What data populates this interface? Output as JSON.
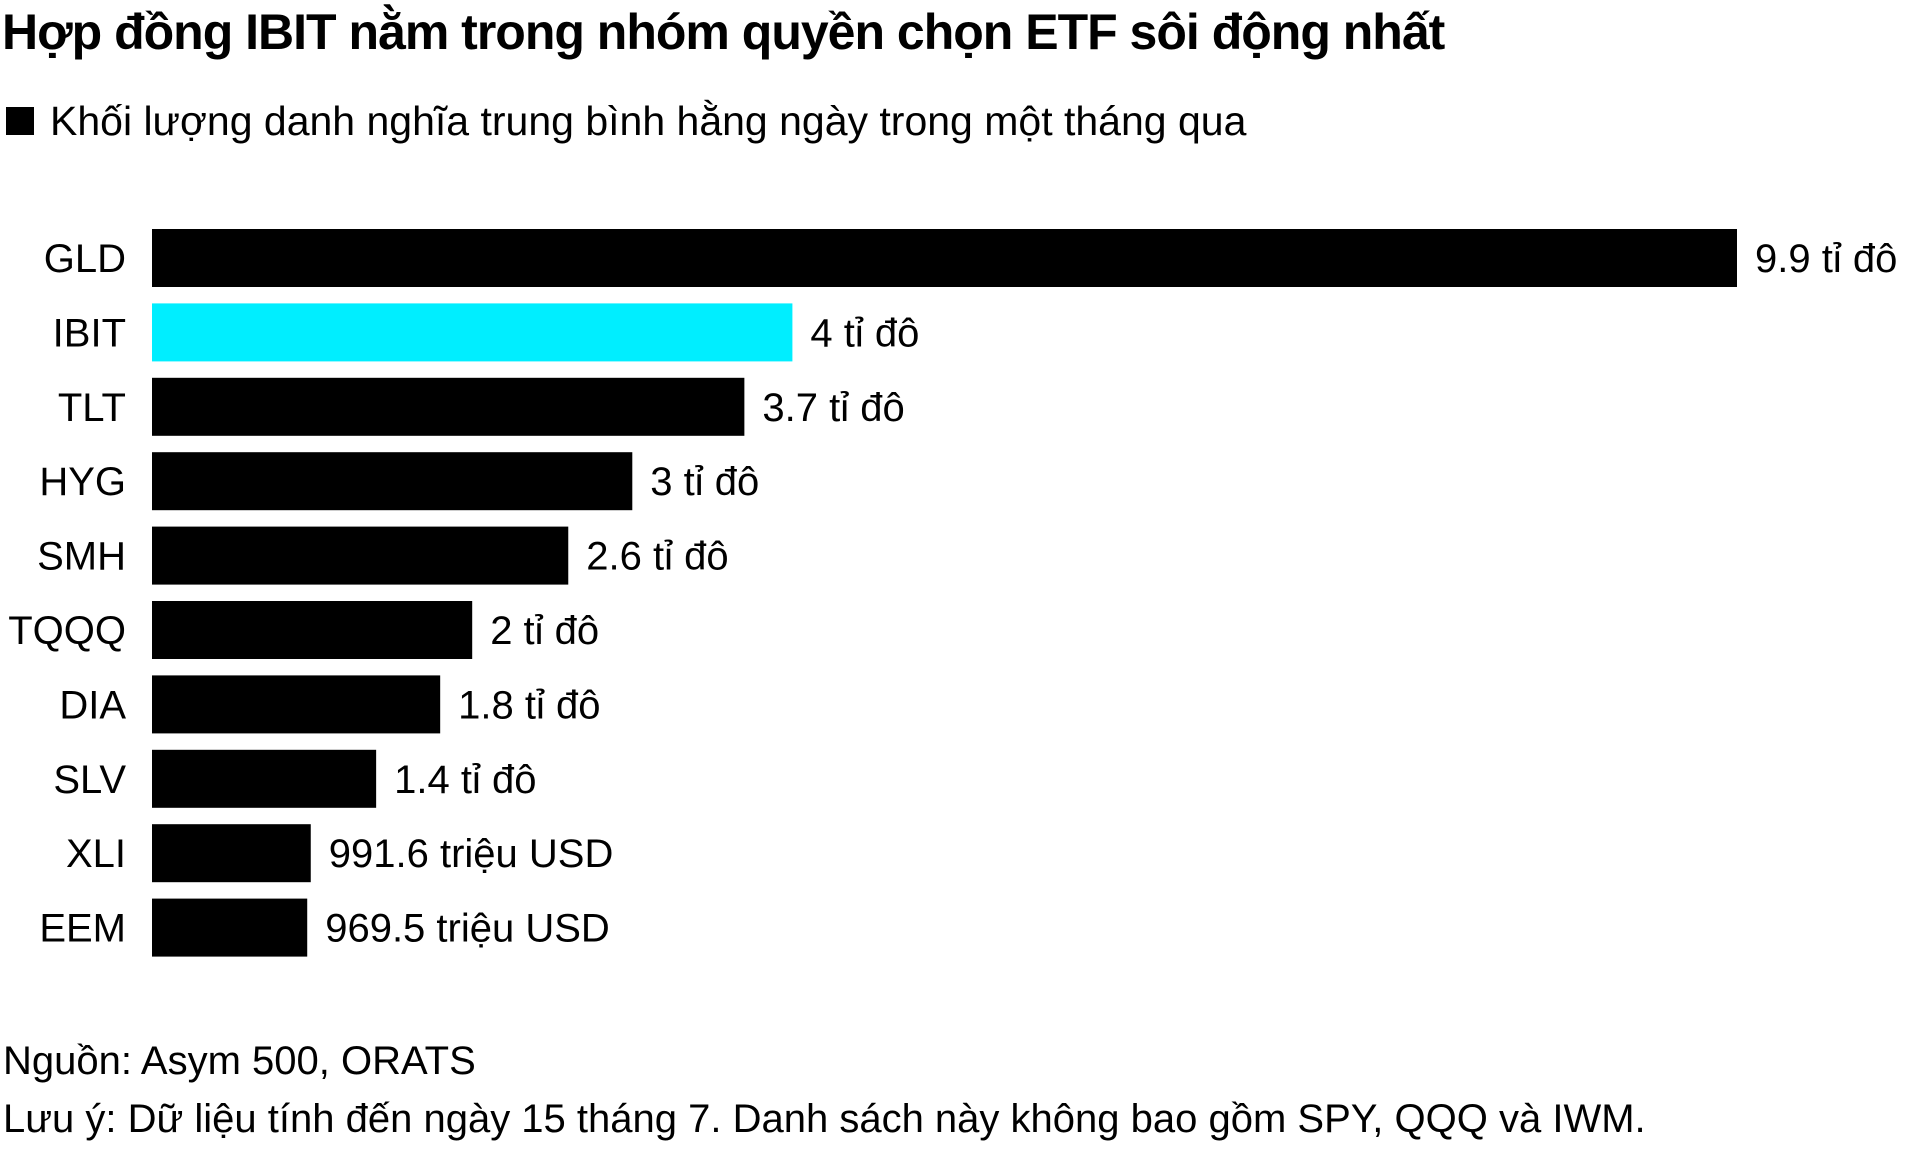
{
  "title": "Hợp đồng IBIT nằm trong nhóm quyền chọn ETF sôi động nhất",
  "legend": {
    "label": "Khối lượng danh nghĩa trung bình hằng ngày trong một tháng qua",
    "color": "#000000"
  },
  "chart_data": {
    "type": "bar",
    "orientation": "horizontal",
    "categories": [
      "GLD",
      "IBIT",
      "TLT",
      "HYG",
      "SMH",
      "TQQQ",
      "DIA",
      "SLV",
      "XLI",
      "EEM"
    ],
    "values": [
      9.9,
      4,
      3.7,
      3,
      2.6,
      2,
      1.8,
      1.4,
      0.9916,
      0.9695
    ],
    "value_unit": "tỉ USD",
    "data_labels": [
      "9.9 tỉ đô",
      "4 tỉ đô",
      "3.7 tỉ đô",
      "3 tỉ đô",
      "2.6 tỉ đô",
      "2 tỉ đô",
      "1.8 tỉ đô",
      "1.4 tỉ đô",
      "991.6 triệu USD",
      "969.5 triệu USD"
    ],
    "colors": [
      "#000000",
      "#00eeff",
      "#000000",
      "#000000",
      "#000000",
      "#000000",
      "#000000",
      "#000000",
      "#000000",
      "#000000"
    ],
    "xlim": [
      0,
      9.9
    ],
    "grid": false,
    "legend_position": "top-left"
  },
  "footer": {
    "source": "Nguồn: Asym 500, ORATS",
    "note": "Lưu ý: Dữ liệu tính đến ngày 15 tháng 7. Danh sách này không bao gồm SPY, QQQ và IWM."
  }
}
